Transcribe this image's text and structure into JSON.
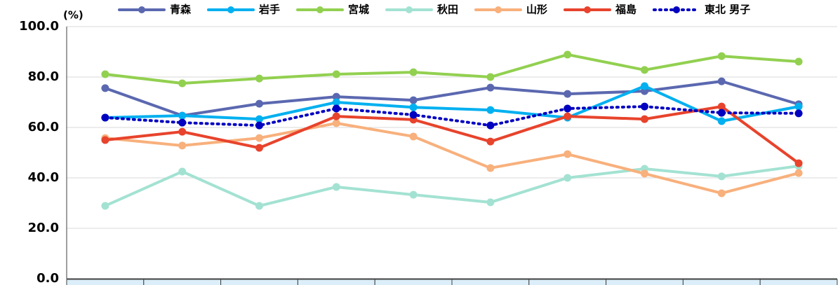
{
  "chart_data": {
    "type": "line",
    "y_unit": "(%)",
    "categories": [
      null,
      null,
      null,
      null,
      null,
      null,
      null,
      null,
      null,
      null
    ],
    "ylim": [
      0,
      100
    ],
    "yticks": [
      {
        "value": 0,
        "label": "0.0"
      },
      {
        "value": 20,
        "label": "20.0"
      },
      {
        "value": 40,
        "label": "40.0"
      },
      {
        "value": 60,
        "label": "60.0"
      },
      {
        "value": 80,
        "label": "80.0"
      },
      {
        "value": 100,
        "label": "100.0"
      }
    ],
    "grid": true,
    "legend": "top",
    "series": [
      {
        "name": "青森",
        "color": "#5b68b0",
        "dash": "solid",
        "values": [
          75.6,
          64.7,
          69.4,
          72.2,
          70.8,
          75.8,
          73.3,
          74.4,
          78.3,
          69.2
        ]
      },
      {
        "name": "岩手",
        "color": "#00b0f0",
        "dash": "solid",
        "values": [
          63.9,
          64.7,
          63.3,
          70.0,
          68.0,
          66.9,
          63.9,
          76.4,
          62.5,
          68.3
        ]
      },
      {
        "name": "宮城",
        "color": "#92d050",
        "dash": "solid",
        "values": [
          81.1,
          77.5,
          79.4,
          81.1,
          81.9,
          80.0,
          88.9,
          82.8,
          88.3,
          86.1
        ]
      },
      {
        "name": "秋田",
        "color": "#a3e2d2",
        "dash": "solid",
        "values": [
          28.9,
          42.5,
          28.9,
          36.4,
          33.3,
          30.3,
          40.0,
          43.6,
          40.6,
          44.7
        ]
      },
      {
        "name": "山形",
        "color": "#f8b07c",
        "dash": "solid",
        "values": [
          55.8,
          52.8,
          55.8,
          61.7,
          56.4,
          43.9,
          49.4,
          41.7,
          33.9,
          41.9
        ]
      },
      {
        "name": "福島",
        "color": "#e8432c",
        "dash": "solid",
        "values": [
          55.0,
          58.3,
          51.9,
          64.4,
          63.1,
          54.4,
          64.4,
          63.3,
          68.3,
          45.8
        ]
      },
      {
        "name": "東北 男子",
        "color": "#0000c0",
        "dash": "dotted",
        "values": [
          63.9,
          61.9,
          60.8,
          67.5,
          65.0,
          60.8,
          67.5,
          68.3,
          65.8,
          65.6
        ]
      }
    ]
  }
}
